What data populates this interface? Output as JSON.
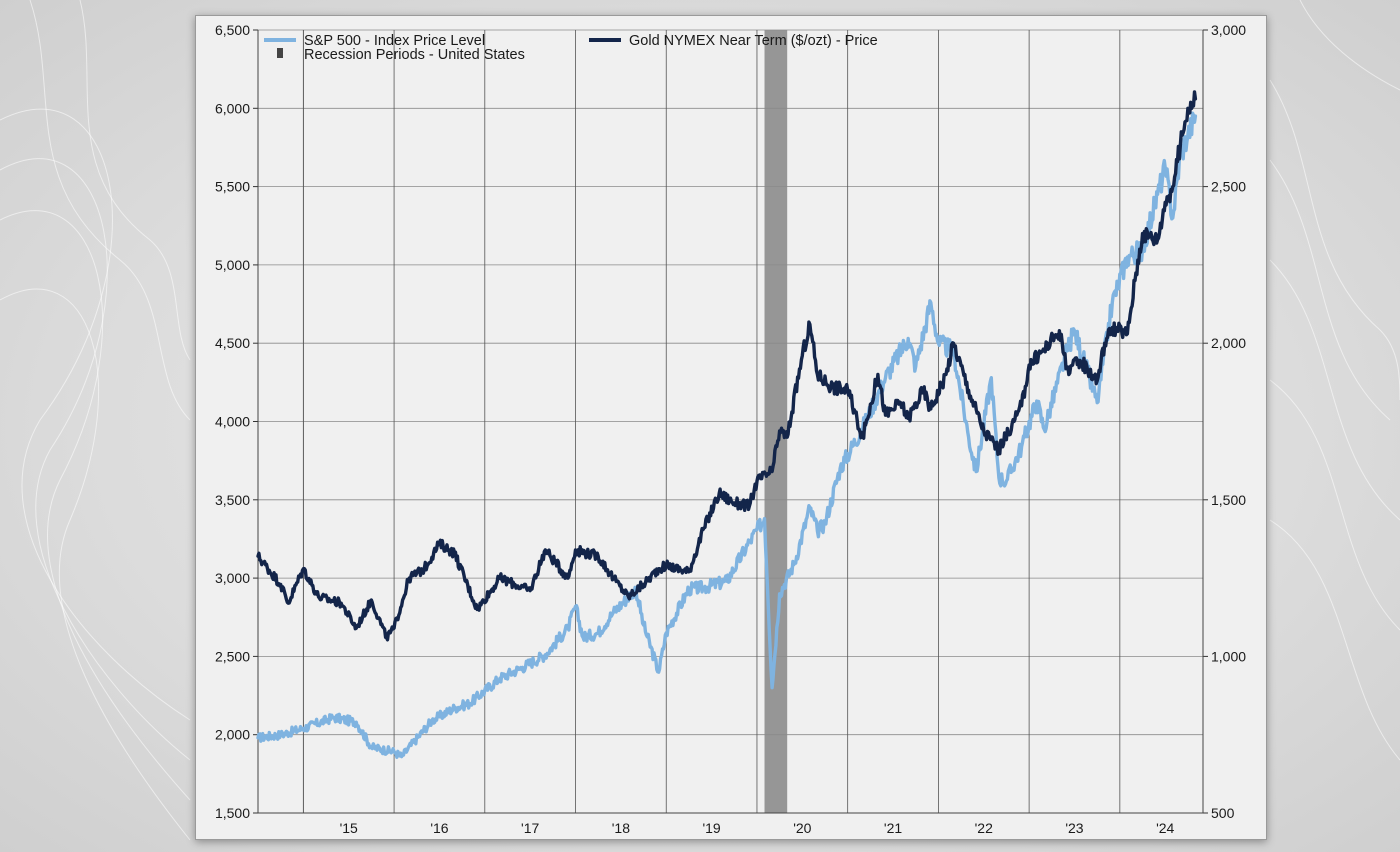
{
  "chart_data": {
    "type": "line",
    "x_range": [
      "2014-07",
      "2024-12"
    ],
    "x_tick_labels": [
      "'15",
      "'16",
      "'17",
      "'18",
      "'19",
      "'20",
      "'21",
      "'22",
      "'23",
      "'24"
    ],
    "y_left": {
      "range": [
        1500,
        6500
      ],
      "tick_labels": [
        "1,500",
        "2,000",
        "2,500",
        "3,000",
        "3,500",
        "4,000",
        "4,500",
        "5,000",
        "5,500",
        "6,000",
        "6,500"
      ]
    },
    "y_right": {
      "range": [
        500,
        3000
      ],
      "tick_labels": [
        "500",
        "1,000",
        "1,500",
        "2,000",
        "2,500",
        "3,000"
      ]
    },
    "grid": true,
    "legend_position": "top-left",
    "recession_periods": [
      {
        "name": "Recession Periods - United States",
        "start": "2020-02",
        "end": "2020-04",
        "color": "#8c8c8c"
      }
    ],
    "series": [
      {
        "name": "S&P 500 - Index Price Level",
        "axis": "left",
        "color": "#7fb3e0",
        "x": [
          "2014-07",
          "2014-10",
          "2015-01",
          "2015-05",
          "2015-08",
          "2015-10",
          "2016-01",
          "2016-02",
          "2016-06",
          "2016-09",
          "2016-11",
          "2017-03",
          "2017-06",
          "2017-09",
          "2017-12",
          "2018-01",
          "2018-02",
          "2018-04",
          "2018-06",
          "2018-09",
          "2018-10",
          "2018-12",
          "2019-01",
          "2019-04",
          "2019-06",
          "2019-09",
          "2019-12",
          "2020-02",
          "2020-03",
          "2020-04",
          "2020-06",
          "2020-08",
          "2020-09",
          "2020-10",
          "2020-12",
          "2021-03",
          "2021-06",
          "2021-09",
          "2021-10",
          "2021-12",
          "2022-01",
          "2022-03",
          "2022-05",
          "2022-06",
          "2022-08",
          "2022-09",
          "2022-10",
          "2022-12",
          "2023-02",
          "2023-03",
          "2023-06",
          "2023-07",
          "2023-10",
          "2023-12",
          "2024-02",
          "2024-04",
          "2024-06",
          "2024-07",
          "2024-08",
          "2024-09",
          "2024-10",
          "2024-11"
        ],
        "y": [
          1980,
          2000,
          2040,
          2110,
          2080,
          1920,
          1890,
          1860,
          2090,
          2170,
          2200,
          2360,
          2430,
          2510,
          2680,
          2820,
          2620,
          2650,
          2780,
          2930,
          2700,
          2400,
          2650,
          2930,
          2940,
          2980,
          3230,
          3380,
          2300,
          2900,
          3100,
          3450,
          3300,
          3350,
          3700,
          3960,
          4280,
          4530,
          4350,
          4760,
          4500,
          4450,
          3900,
          3680,
          4280,
          3640,
          3620,
          3840,
          4130,
          3950,
          4450,
          4580,
          4120,
          4760,
          5050,
          5100,
          5450,
          5620,
          5300,
          5700,
          5830,
          5950
        ]
      },
      {
        "name": "Gold NYMEX Near Term ($/ozt) - Price",
        "axis": "right",
        "color": "#13254a",
        "x": [
          "2014-07",
          "2014-10",
          "2014-11",
          "2015-01",
          "2015-03",
          "2015-06",
          "2015-08",
          "2015-10",
          "2015-12",
          "2016-01",
          "2016-03",
          "2016-05",
          "2016-07",
          "2016-09",
          "2016-12",
          "2017-03",
          "2017-05",
          "2017-07",
          "2017-09",
          "2017-12",
          "2018-01",
          "2018-04",
          "2018-06",
          "2018-08",
          "2018-10",
          "2018-12",
          "2019-01",
          "2019-04",
          "2019-06",
          "2019-08",
          "2019-10",
          "2019-12",
          "2020-01",
          "2020-03",
          "2020-04",
          "2020-05",
          "2020-07",
          "2020-08",
          "2020-09",
          "2020-11",
          "2021-01",
          "2021-03",
          "2021-05",
          "2021-06",
          "2021-08",
          "2021-09",
          "2021-11",
          "2021-12",
          "2022-02",
          "2022-03",
          "2022-05",
          "2022-07",
          "2022-09",
          "2022-11",
          "2022-12",
          "2023-01",
          "2023-03",
          "2023-05",
          "2023-06",
          "2023-08",
          "2023-10",
          "2023-11",
          "2023-12",
          "2024-02",
          "2024-03",
          "2024-04",
          "2024-05",
          "2024-06",
          "2024-07",
          "2024-08",
          "2024-09",
          "2024-10",
          "2024-11"
        ],
        "y": [
          1320,
          1230,
          1170,
          1280,
          1190,
          1170,
          1090,
          1180,
          1060,
          1090,
          1250,
          1280,
          1360,
          1330,
          1150,
          1250,
          1230,
          1210,
          1340,
          1250,
          1340,
          1320,
          1250,
          1190,
          1230,
          1280,
          1290,
          1270,
          1410,
          1520,
          1490,
          1480,
          1560,
          1590,
          1720,
          1700,
          1960,
          2060,
          1900,
          1860,
          1850,
          1700,
          1900,
          1770,
          1810,
          1760,
          1850,
          1790,
          1900,
          2000,
          1850,
          1720,
          1660,
          1750,
          1800,
          1930,
          1980,
          2040,
          1920,
          1940,
          1880,
          2000,
          2050,
          2030,
          2200,
          2350,
          2340,
          2330,
          2450,
          2500,
          2630,
          2750,
          2780
        ]
      }
    ]
  }
}
